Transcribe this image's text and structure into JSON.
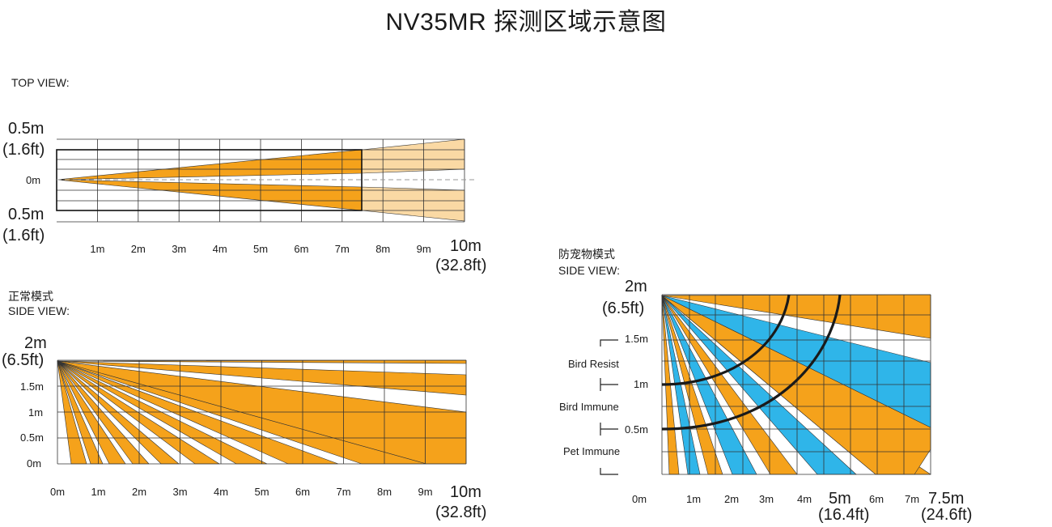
{
  "title": "NV35MR 探测区域示意图",
  "top_view": {
    "heading": "TOP VIEW:",
    "left_labels": {
      "top_m": "0.5m",
      "top_ft": "(1.6ft)",
      "center": "0m",
      "bottom_m": "0.5m",
      "bottom_ft": "(1.6ft)"
    },
    "x_ticks": [
      "1m",
      "2m",
      "3m",
      "4m",
      "5m",
      "6m",
      "7m",
      "8m",
      "9m"
    ],
    "end_m": "10m",
    "end_ft": "(32.8ft)"
  },
  "normal_side": {
    "mode": "正常模式",
    "heading": "SIDE VIEW:",
    "left_labels": {
      "top_m": "2m",
      "top_ft": "(6.5ft)",
      "l15": "1.5m",
      "l1": "1m",
      "l05": "0.5m",
      "l0": "0m"
    },
    "x_ticks": [
      "0m",
      "1m",
      "2m",
      "3m",
      "4m",
      "5m",
      "6m",
      "7m",
      "8m",
      "9m"
    ],
    "end_m": "10m",
    "end_ft": "(32.8ft)"
  },
  "pet_side": {
    "mode": "防宠物模式",
    "heading": "SIDE VIEW:",
    "left_labels": {
      "top_m": "2m",
      "top_ft": "(6.5ft)",
      "l15": "1.5m",
      "l1": "1m",
      "l05": "0.5m"
    },
    "zones": {
      "bird_resist": "Bird Resist",
      "bird_immune": "Bird Immune",
      "pet_immune": "Pet Immune"
    },
    "x_ticks": [
      "0m",
      "1m",
      "2m",
      "3m",
      "4m",
      "6m",
      "7m"
    ],
    "mid_m": "5m",
    "mid_ft": "(16.4ft)",
    "end_m": "7.5m",
    "end_ft": "(24.6ft)"
  },
  "colors": {
    "orange": "#f5a21b",
    "light_orange": "#fad9a4",
    "blue": "#2fb5e9",
    "grid": "#333333"
  }
}
